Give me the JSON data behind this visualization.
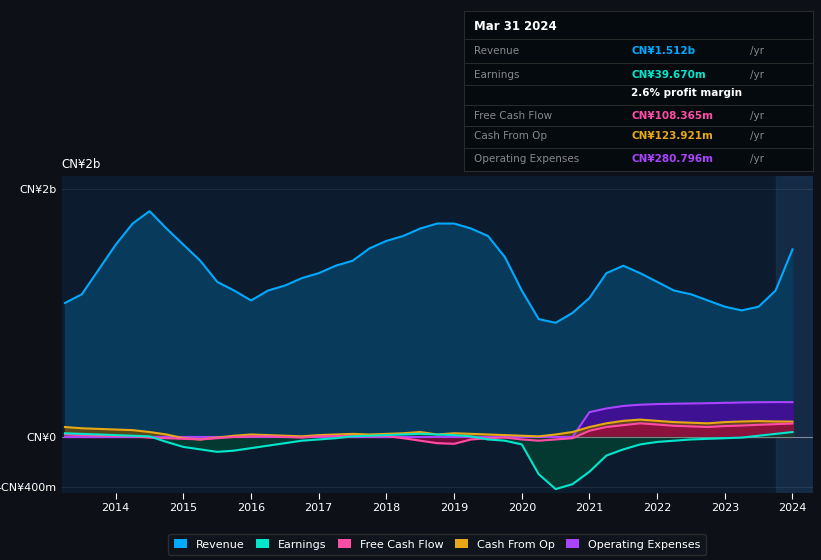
{
  "bg_color": "#0d1117",
  "plot_bg_color": "#0d1b2e",
  "revenue_color": "#00aaff",
  "earnings_color": "#00e5cc",
  "fcf_color": "#ff4da6",
  "cashop_color": "#e6a817",
  "opex_color": "#aa44ff",
  "legend_items": [
    "Revenue",
    "Earnings",
    "Free Cash Flow",
    "Cash From Op",
    "Operating Expenses"
  ],
  "legend_colors": [
    "#00aaff",
    "#00e5cc",
    "#ff4da6",
    "#e6a817",
    "#aa44ff"
  ],
  "info_box": {
    "date": "Mar 31 2024",
    "revenue_label": "Revenue",
    "revenue_value": "CN¥1.512b",
    "earnings_label": "Earnings",
    "earnings_value": "CN¥39.670m",
    "margin_text": "2.6% profit margin",
    "fcf_label": "Free Cash Flow",
    "fcf_value": "CN¥108.365m",
    "cashop_label": "Cash From Op",
    "cashop_value": "CN¥123.921m",
    "opex_label": "Operating Expenses",
    "opex_value": "CN¥280.796m"
  },
  "ylim_min": -450000000,
  "ylim_max": 2100000000,
  "yticks": [
    -400000000,
    0,
    2000000000
  ],
  "ytick_labels": [
    "-CN¥400m",
    "CN¥0",
    "CN¥2b"
  ],
  "revenue_data_x": [
    2013.25,
    2013.5,
    2013.75,
    2014.0,
    2014.25,
    2014.5,
    2014.75,
    2015.0,
    2015.25,
    2015.5,
    2015.75,
    2016.0,
    2016.25,
    2016.5,
    2016.75,
    2017.0,
    2017.25,
    2017.5,
    2017.75,
    2018.0,
    2018.25,
    2018.5,
    2018.75,
    2019.0,
    2019.25,
    2019.5,
    2019.75,
    2020.0,
    2020.25,
    2020.5,
    2020.75,
    2021.0,
    2021.25,
    2021.5,
    2021.75,
    2022.0,
    2022.25,
    2022.5,
    2022.75,
    2023.0,
    2023.25,
    2023.5,
    2023.75,
    2024.0
  ],
  "revenue_data_y": [
    1080000000.0,
    1150000000.0,
    1350000000.0,
    1550000000.0,
    1720000000.0,
    1820000000.0,
    1680000000.0,
    1550000000.0,
    1420000000.0,
    1250000000.0,
    1180000000.0,
    1100000000.0,
    1180000000.0,
    1220000000.0,
    1280000000.0,
    1320000000.0,
    1380000000.0,
    1420000000.0,
    1520000000.0,
    1580000000.0,
    1620000000.0,
    1680000000.0,
    1720000000.0,
    1720000000.0,
    1680000000.0,
    1620000000.0,
    1450000000.0,
    1180000000.0,
    950000000.0,
    920000000.0,
    1000000000.0,
    1120000000.0,
    1320000000.0,
    1380000000.0,
    1320000000.0,
    1250000000.0,
    1180000000.0,
    1150000000.0,
    1100000000.0,
    1050000000.0,
    1020000000.0,
    1050000000.0,
    1180000000.0,
    1512000000.0
  ],
  "earnings_data_x": [
    2013.25,
    2013.5,
    2013.75,
    2014.0,
    2014.25,
    2014.5,
    2014.75,
    2015.0,
    2015.25,
    2015.5,
    2015.75,
    2016.0,
    2016.25,
    2016.5,
    2016.75,
    2017.0,
    2017.25,
    2017.5,
    2017.75,
    2018.0,
    2018.25,
    2018.5,
    2018.75,
    2019.0,
    2019.25,
    2019.5,
    2019.75,
    2020.0,
    2020.25,
    2020.5,
    2020.75,
    2021.0,
    2021.25,
    2021.5,
    2021.75,
    2022.0,
    2022.25,
    2022.5,
    2022.75,
    2023.0,
    2023.25,
    2023.5,
    2023.75,
    2024.0
  ],
  "earnings_data_y": [
    30000000.0,
    25000000.0,
    20000000.0,
    15000000.0,
    10000000.0,
    5000000.0,
    -40000000.0,
    -80000000.0,
    -100000000.0,
    -120000000.0,
    -110000000.0,
    -90000000.0,
    -70000000.0,
    -50000000.0,
    -30000000.0,
    -20000000.0,
    -10000000.0,
    5000000.0,
    10000000.0,
    15000000.0,
    20000000.0,
    25000000.0,
    20000000.0,
    15000000.0,
    5000000.0,
    -20000000.0,
    -30000000.0,
    -60000000.0,
    -300000000.0,
    -420000000.0,
    -380000000.0,
    -280000000.0,
    -150000000.0,
    -100000000.0,
    -60000000.0,
    -40000000.0,
    -30000000.0,
    -20000000.0,
    -15000000.0,
    -10000000.0,
    -5000000.0,
    10000000.0,
    25000000.0,
    39670000.0
  ],
  "fcf_data_x": [
    2013.25,
    2013.5,
    2013.75,
    2014.0,
    2014.25,
    2014.5,
    2014.75,
    2015.0,
    2015.25,
    2015.5,
    2015.75,
    2016.0,
    2016.25,
    2016.5,
    2016.75,
    2017.0,
    2017.25,
    2017.5,
    2017.75,
    2018.0,
    2018.25,
    2018.5,
    2018.75,
    2019.0,
    2019.25,
    2019.5,
    2019.75,
    2020.0,
    2020.25,
    2020.5,
    2020.75,
    2021.0,
    2021.25,
    2021.5,
    2021.75,
    2022.0,
    2022.25,
    2022.5,
    2022.75,
    2023.0,
    2023.25,
    2023.5,
    2023.75,
    2024.0
  ],
  "fcf_data_y": [
    20000000.0,
    15000000.0,
    10000000.0,
    8000000.0,
    5000000.0,
    -5000000.0,
    -10000000.0,
    -15000000.0,
    -20000000.0,
    -10000000.0,
    0,
    5000000.0,
    5000000.0,
    0,
    -5000000.0,
    5000000.0,
    8000000.0,
    8000000.0,
    5000000.0,
    8000000.0,
    -10000000.0,
    -30000000.0,
    -50000000.0,
    -55000000.0,
    -20000000.0,
    -10000000.0,
    -5000000.0,
    -20000000.0,
    -30000000.0,
    -20000000.0,
    -10000000.0,
    50000000.0,
    80000000.0,
    95000000.0,
    110000000.0,
    100000000.0,
    90000000.0,
    85000000.0,
    80000000.0,
    88000000.0,
    92000000.0,
    98000000.0,
    103000000.0,
    108365000.0
  ],
  "cashop_data_x": [
    2013.25,
    2013.5,
    2013.75,
    2014.0,
    2014.25,
    2014.5,
    2014.75,
    2015.0,
    2015.25,
    2015.5,
    2015.75,
    2016.0,
    2016.25,
    2016.5,
    2016.75,
    2017.0,
    2017.25,
    2017.5,
    2017.75,
    2018.0,
    2018.25,
    2018.5,
    2018.75,
    2019.0,
    2019.25,
    2019.5,
    2019.75,
    2020.0,
    2020.25,
    2020.5,
    2020.75,
    2021.0,
    2021.25,
    2021.5,
    2021.75,
    2022.0,
    2022.25,
    2022.5,
    2022.75,
    2023.0,
    2023.25,
    2023.5,
    2023.75,
    2024.0
  ],
  "cashop_data_y": [
    80000000.0,
    70000000.0,
    65000000.0,
    60000000.0,
    55000000.0,
    40000000.0,
    20000000.0,
    -10000000.0,
    -20000000.0,
    -5000000.0,
    10000000.0,
    20000000.0,
    15000000.0,
    10000000.0,
    5000000.0,
    15000000.0,
    20000000.0,
    25000000.0,
    20000000.0,
    25000000.0,
    30000000.0,
    40000000.0,
    20000000.0,
    30000000.0,
    25000000.0,
    20000000.0,
    15000000.0,
    10000000.0,
    5000000.0,
    20000000.0,
    40000000.0,
    80000000.0,
    110000000.0,
    130000000.0,
    140000000.0,
    130000000.0,
    120000000.0,
    115000000.0,
    110000000.0,
    120000000.0,
    125000000.0,
    128000000.0,
    125000000.0,
    123921000.0
  ],
  "opex_data_x": [
    2013.25,
    2013.5,
    2013.75,
    2014.0,
    2014.25,
    2014.5,
    2014.75,
    2015.0,
    2015.25,
    2015.5,
    2015.75,
    2016.0,
    2016.25,
    2016.5,
    2016.75,
    2017.0,
    2017.25,
    2017.5,
    2017.75,
    2018.0,
    2018.25,
    2018.5,
    2018.75,
    2019.0,
    2019.25,
    2019.5,
    2019.75,
    2020.0,
    2020.25,
    2020.5,
    2020.75,
    2021.0,
    2021.25,
    2021.5,
    2021.75,
    2022.0,
    2022.25,
    2022.5,
    2022.75,
    2023.0,
    2023.25,
    2023.5,
    2023.75,
    2024.0
  ],
  "opex_data_y": [
    0,
    0,
    0,
    0,
    0,
    0,
    0,
    0,
    0,
    0,
    0,
    0,
    0,
    0,
    0,
    0,
    0,
    0,
    0,
    0,
    0,
    0,
    0,
    0,
    0,
    0,
    0,
    0,
    0,
    0,
    0,
    200000000.0,
    230000000.0,
    250000000.0,
    260000000.0,
    265000000.0,
    268000000.0,
    270000000.0,
    272000000.0,
    275000000.0,
    278000000.0,
    280000000.0,
    281000000.0,
    280796000.0
  ],
  "shaded_start": 2023.75,
  "xlim": [
    2013.2,
    2024.3
  ],
  "xticks": [
    2014,
    2015,
    2016,
    2017,
    2018,
    2019,
    2020,
    2021,
    2022,
    2023,
    2024
  ],
  "xtick_labels": [
    "2014",
    "2015",
    "2016",
    "2017",
    "2018",
    "2019",
    "2020",
    "2021",
    "2022",
    "2023",
    "2024"
  ]
}
